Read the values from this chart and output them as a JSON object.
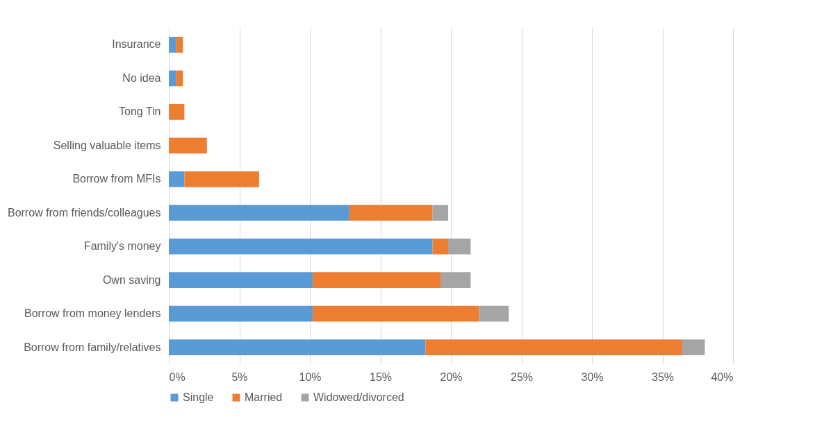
{
  "chart_data": {
    "type": "bar",
    "orientation": "horizontal",
    "stacked": true,
    "categories": [
      "Insurance",
      "No idea",
      "Tong Tin",
      "Selling valuable items",
      "Borrow  from MFIs",
      "Borrow from friends/colleagues",
      "Family's money",
      "Own saving",
      "Borrow from money lenders",
      "Borrow from family/relatives"
    ],
    "series": [
      {
        "name": "Single",
        "color": "#5b9bd5",
        "values": [
          0.5,
          0.5,
          0,
          0,
          1.1,
          12.8,
          18.7,
          10.2,
          10.2,
          18.2
        ]
      },
      {
        "name": "Married",
        "color": "#ed7d31",
        "values": [
          0.5,
          0.5,
          1.1,
          2.7,
          5.3,
          5.9,
          1.1,
          9.1,
          11.8,
          18.2
        ]
      },
      {
        "name": "Widowed/divorced",
        "color": "#a5a5a5",
        "values": [
          0,
          0,
          0,
          0,
          0,
          1.1,
          1.6,
          2.1,
          2.1,
          1.6
        ]
      }
    ],
    "xlim": [
      0,
      40
    ],
    "xticks": [
      {
        "value": 0,
        "label": "0%"
      },
      {
        "value": 5,
        "label": "5%"
      },
      {
        "value": 10,
        "label": "10%"
      },
      {
        "value": 15,
        "label": "15%"
      },
      {
        "value": 20,
        "label": "20%"
      },
      {
        "value": 25,
        "label": "25%"
      },
      {
        "value": 30,
        "label": "30%"
      },
      {
        "value": 35,
        "label": "35%"
      },
      {
        "value": 40,
        "label": "40%"
      }
    ],
    "grid": "x",
    "legend": "bottom"
  }
}
